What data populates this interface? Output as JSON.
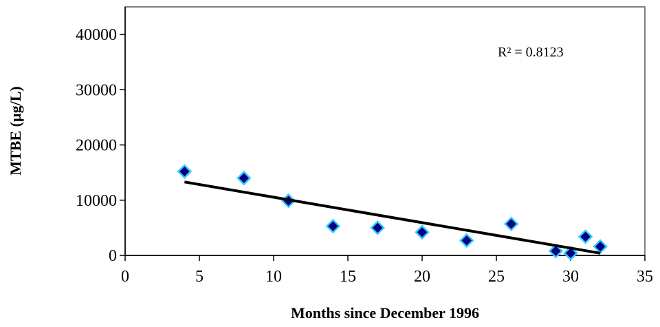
{
  "chart_data": {
    "type": "scatter",
    "x_label": "Months since December 1996",
    "y_label": "MTBE (µg/L)",
    "annotation": "R² =  0.8123",
    "x": [
      4,
      8,
      11,
      14,
      17,
      20,
      23,
      26,
      29,
      30,
      31,
      32
    ],
    "series": [
      {
        "name": "MTBE",
        "color": "#000080",
        "edge_color": "#33ccff",
        "values": [
          15200,
          14000,
          9900,
          5300,
          5000,
          4200,
          2700,
          5700,
          800,
          400,
          3400,
          1600
        ]
      }
    ],
    "trendline": {
      "x": [
        4,
        32
      ],
      "values": [
        13300,
        400
      ],
      "color": "#000000"
    },
    "xlim": [
      0,
      35
    ],
    "xticks": [
      0,
      5,
      10,
      15,
      20,
      25,
      30,
      35
    ],
    "ylim": [
      0,
      45000
    ],
    "yticks": [
      0,
      10000,
      20000,
      30000,
      40000
    ]
  }
}
